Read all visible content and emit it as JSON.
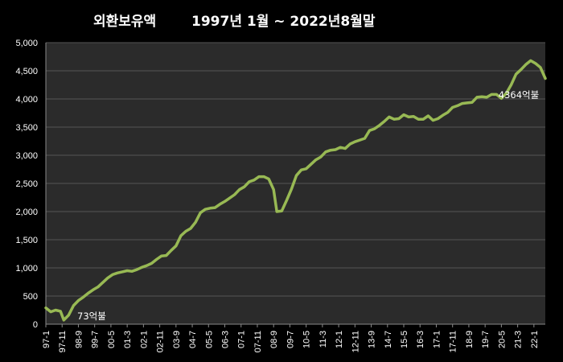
{
  "chart_data": {
    "type": "line",
    "title": "외환보유액",
    "subtitle": "1997년 1월 ~ 2022년8월말",
    "xlabel": "",
    "ylabel": "",
    "ylim": [
      0,
      5000
    ],
    "y_ticks": [
      0,
      500,
      1000,
      1500,
      2000,
      2500,
      3000,
      3500,
      4000,
      4500,
      5000
    ],
    "y_tick_labels": [
      "0",
      "500",
      "1,000",
      "1,500",
      "2,000",
      "2,500",
      "3,000",
      "3,500",
      "4,000",
      "4,500",
      "5,000"
    ],
    "x_tick_labels": [
      "97-1",
      "97-11",
      "98-9",
      "99-7",
      "00-5",
      "01-3",
      "02-1",
      "02-11",
      "03-9",
      "04-7",
      "05-5",
      "06-3",
      "07-1",
      "07-11",
      "08-9",
      "09-7",
      "10-5",
      "11-3",
      "12-1",
      "12-11",
      "13-9",
      "14-7",
      "15-5",
      "16-3",
      "17-1",
      "17-11",
      "18-9",
      "19-7",
      "20-5",
      "21-3",
      "22-1"
    ],
    "grid": true,
    "line_color": "#98b954",
    "background_color": "#2b2b2b",
    "series": [
      {
        "x": [
          "1997-01",
          "1997-04",
          "1997-07",
          "1997-10",
          "1997-12",
          "1998-03",
          "1998-06",
          "1998-09",
          "1998-12",
          "1999-03",
          "1999-06",
          "1999-09",
          "1999-12",
          "2000-03",
          "2000-06",
          "2000-09",
          "2000-12",
          "2001-03",
          "2001-06",
          "2001-09",
          "2001-12",
          "2002-03",
          "2002-06",
          "2002-09",
          "2002-12",
          "2003-03",
          "2003-06",
          "2003-09",
          "2003-12",
          "2004-03",
          "2004-06",
          "2004-09",
          "2004-12",
          "2005-03",
          "2005-06",
          "2005-09",
          "2005-12",
          "2006-03",
          "2006-06",
          "2006-09",
          "2006-12",
          "2007-03",
          "2007-06",
          "2007-09",
          "2007-12",
          "2008-03",
          "2008-06",
          "2008-09",
          "2008-11",
          "2009-02",
          "2009-05",
          "2009-08",
          "2009-11",
          "2010-02",
          "2010-05",
          "2010-08",
          "2010-11",
          "2011-02",
          "2011-05",
          "2011-08",
          "2011-11",
          "2012-02",
          "2012-05",
          "2012-08",
          "2012-11",
          "2013-02",
          "2013-05",
          "2013-08",
          "2013-11",
          "2014-02",
          "2014-05",
          "2014-08",
          "2014-11",
          "2015-02",
          "2015-05",
          "2015-08",
          "2015-11",
          "2016-02",
          "2016-05",
          "2016-08",
          "2016-11",
          "2017-02",
          "2017-05",
          "2017-08",
          "2017-11",
          "2018-02",
          "2018-05",
          "2018-08",
          "2018-11",
          "2019-02",
          "2019-05",
          "2019-08",
          "2019-11",
          "2020-02",
          "2020-05",
          "2020-08",
          "2020-11",
          "2021-02",
          "2021-05",
          "2021-08",
          "2021-11",
          "2022-02",
          "2022-05",
          "2022-08"
        ],
        "y": [
          290,
          220,
          250,
          230,
          73,
          160,
          330,
          420,
          480,
          550,
          610,
          660,
          740,
          820,
          880,
          910,
          930,
          950,
          940,
          970,
          1010,
          1040,
          1080,
          1150,
          1210,
          1220,
          1310,
          1390,
          1570,
          1650,
          1700,
          1810,
          1980,
          2040,
          2060,
          2070,
          2130,
          2180,
          2240,
          2300,
          2390,
          2440,
          2530,
          2560,
          2620,
          2620,
          2580,
          2390,
          2000,
          2010,
          2200,
          2400,
          2640,
          2740,
          2760,
          2840,
          2920,
          2970,
          3060,
          3090,
          3100,
          3140,
          3120,
          3200,
          3240,
          3270,
          3300,
          3440,
          3470,
          3530,
          3600,
          3680,
          3640,
          3650,
          3720,
          3680,
          3690,
          3640,
          3640,
          3700,
          3620,
          3650,
          3710,
          3760,
          3850,
          3880,
          3920,
          3930,
          3940,
          4030,
          4040,
          4030,
          4080,
          4080,
          4010,
          4100,
          4250,
          4440,
          4520,
          4610,
          4680,
          4630,
          4560,
          4364
        ]
      }
    ],
    "annotations": {
      "low": "73억불",
      "last": "4364억불"
    }
  }
}
